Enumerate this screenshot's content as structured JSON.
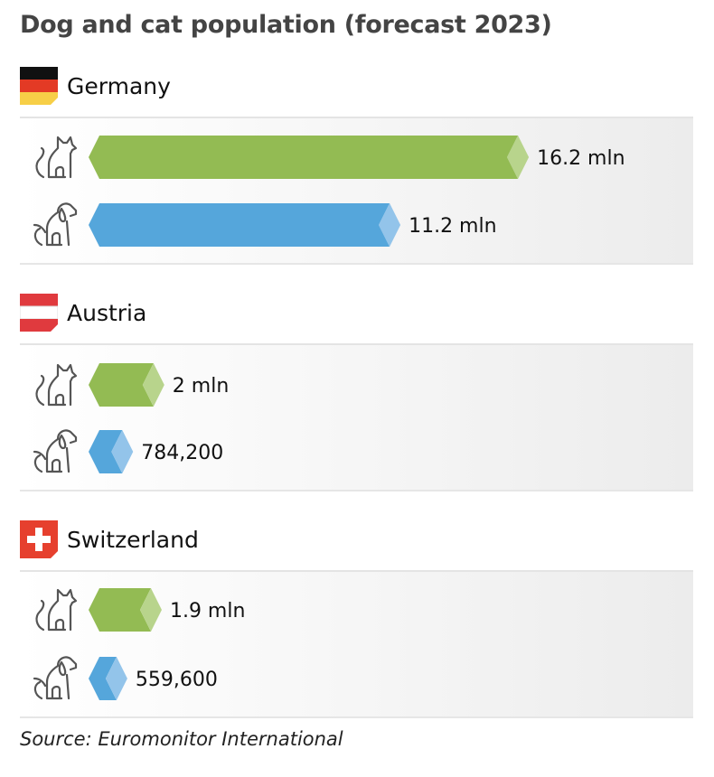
{
  "title": "Dog and cat population (forecast 2023)",
  "source": "Source: Euromonitor International",
  "colors": {
    "cat": "#93bb53",
    "cat_cap": "#b8d48c",
    "dog": "#55a6db",
    "dog_cap": "#93c4ea"
  },
  "chart_data": {
    "type": "bar",
    "title": "Dog and cat population (forecast 2023)",
    "unit": "mln",
    "groups": [
      {
        "country": "Germany",
        "flag": "germany-flag",
        "cat": {
          "value": 16.2,
          "label": "16.2 mln"
        },
        "dog": {
          "value": 11.2,
          "label": "11.2 mln"
        }
      },
      {
        "country": "Austria",
        "flag": "austria-flag",
        "cat": {
          "value": 2.0,
          "label": "2 mln"
        },
        "dog": {
          "value": 0.7842,
          "label": "784,200"
        }
      },
      {
        "country": "Switzerland",
        "flag": "switzerland-flag",
        "cat": {
          "value": 1.9,
          "label": "1.9 mln"
        },
        "dog": {
          "value": 0.5596,
          "label": "559,600"
        }
      }
    ]
  }
}
